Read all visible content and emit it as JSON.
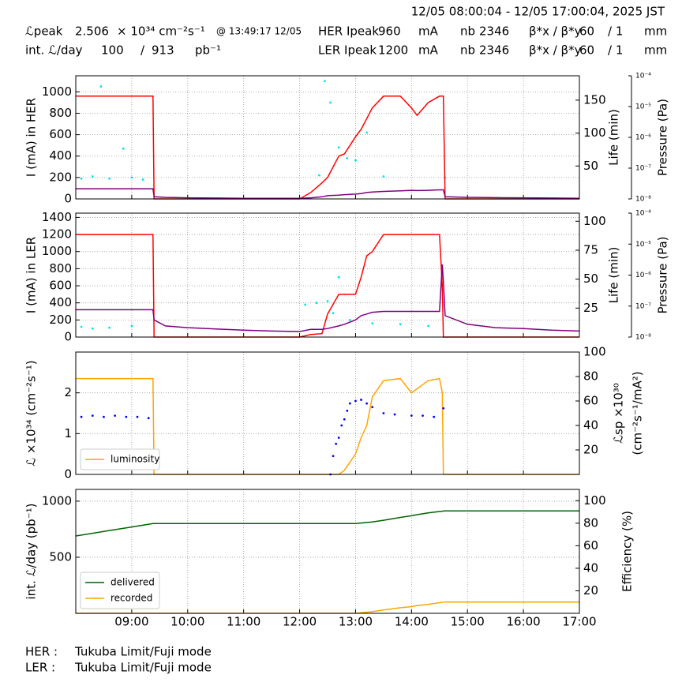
{
  "header": {
    "time_range": "12/05 08:00:04 - 12/05 17:00:04, 2025 JST",
    "rows": [
      [
        "ℒpeak",
        2.506,
        "× 10³⁴ cm⁻²s⁻¹",
        "@ 13:49:17 12/05",
        "HER Ipeak",
        960,
        "mA",
        "nb",
        2346,
        "β*x / β*y",
        60,
        "/ 1",
        "mm"
      ],
      [
        "int. ℒ/day",
        100,
        "/",
        913,
        "pb⁻¹",
        "LER Ipeak",
        1200,
        "mA",
        "nb",
        2346,
        "β*x / β*y",
        60,
        "/ 1",
        "mm"
      ]
    ]
  },
  "chart_data": [
    {
      "type": "line",
      "ylabel": "I (mA) in HER",
      "y2label": [
        "Life (min)"
      ],
      "y3label": "Pressure (Pa)",
      "ylim": [
        0,
        1150
      ],
      "yticks": [
        0,
        200,
        400,
        600,
        800,
        1000
      ],
      "y2lim": [
        0,
        187
      ],
      "y2ticks": [
        50,
        100,
        150
      ],
      "y3scale": "log",
      "y3lim": [
        1e-08,
        0.0001
      ],
      "y3ticks": [
        {
          "value": 1e-08,
          "label": "10⁻⁸"
        },
        {
          "value": 1e-07,
          "label": "10⁻⁷"
        },
        {
          "value": 1e-06,
          "label": "10⁻⁶"
        },
        {
          "value": 1e-05,
          "label": "10⁻⁵"
        },
        {
          "value": 0.0001,
          "label": "10⁻⁴"
        }
      ],
      "grid": true,
      "x": [
        8.0,
        8.5,
        9.0,
        9.38,
        9.4,
        9.6,
        10.0,
        10.5,
        11.0,
        11.5,
        12.0,
        12.2,
        12.4,
        12.5,
        12.7,
        12.8,
        13.0,
        13.1,
        13.2,
        13.3,
        13.5,
        13.8,
        14.0,
        14.1,
        14.3,
        14.5,
        14.55,
        14.57,
        14.6,
        15.0,
        15.5,
        16.0,
        16.5,
        17.0
      ],
      "series": [
        {
          "color": "#00e5ee",
          "mode": "markers",
          "x": [
            8.1,
            8.3,
            8.45,
            8.6,
            8.85,
            9.0,
            9.2,
            12.35,
            12.45,
            12.55,
            12.7,
            12.85,
            13.0,
            13.2,
            13.5,
            14.6
          ],
          "values": [
            190,
            210,
            1050,
            190,
            470,
            200,
            180,
            220,
            1100,
            900,
            480,
            380,
            360,
            620,
            210,
            200
          ]
        },
        {
          "color": "#ff0000",
          "values": [
            960,
            960,
            960,
            960,
            0,
            0,
            0,
            0,
            0,
            0,
            0,
            60,
            150,
            200,
            400,
            420,
            580,
            650,
            750,
            850,
            960,
            960,
            850,
            780,
            900,
            960,
            960,
            960,
            0,
            0,
            0,
            0,
            0,
            0
          ]
        },
        {
          "color": "#800080",
          "values": [
            95,
            95,
            95,
            95,
            20,
            15,
            10,
            8,
            6,
            5,
            5,
            10,
            20,
            30,
            35,
            40,
            45,
            50,
            60,
            65,
            70,
            75,
            80,
            78,
            80,
            85,
            85,
            85,
            20,
            15,
            12,
            10,
            8,
            5
          ]
        }
      ]
    },
    {
      "type": "line",
      "ylabel": "I (mA) in LER",
      "y2label": [
        "Life (min)"
      ],
      "y3label": "Pressure (Pa)",
      "ylim": [
        0,
        1450
      ],
      "yticks": [
        0,
        200,
        400,
        600,
        800,
        1000,
        1200,
        1400
      ],
      "y2lim": [
        0,
        107
      ],
      "y2ticks": [
        25,
        50,
        75,
        100
      ],
      "y3scale": "log",
      "y3lim": [
        1e-08,
        0.0001
      ],
      "y3ticks": [
        {
          "value": 1e-08,
          "label": "10⁻⁸"
        },
        {
          "value": 1e-07,
          "label": "10⁻⁷"
        },
        {
          "value": 1e-06,
          "label": "10⁻⁶"
        },
        {
          "value": 1e-05,
          "label": "10⁻⁵"
        },
        {
          "value": 0.0001,
          "label": "10⁻⁴"
        }
      ],
      "grid": true,
      "x": [
        8.0,
        8.5,
        9.0,
        9.38,
        9.4,
        9.6,
        10.0,
        10.5,
        11.0,
        11.5,
        12.0,
        12.2,
        12.4,
        12.5,
        12.7,
        12.8,
        13.0,
        13.1,
        13.2,
        13.3,
        13.5,
        13.8,
        14.0,
        14.1,
        14.3,
        14.5,
        14.55,
        14.57,
        14.6,
        15.0,
        15.5,
        16.0,
        16.5,
        17.0
      ],
      "series": [
        {
          "color": "#00e5ee",
          "mode": "markers",
          "x": [
            8.1,
            8.3,
            8.6,
            9.0,
            12.1,
            12.3,
            12.5,
            12.6,
            12.7,
            12.9,
            13.3,
            13.8,
            14.3
          ],
          "values": [
            120,
            100,
            110,
            130,
            380,
            400,
            420,
            280,
            700,
            200,
            160,
            150,
            130
          ]
        },
        {
          "color": "#ff0000",
          "values": [
            1200,
            1200,
            1200,
            1200,
            0,
            0,
            0,
            0,
            0,
            0,
            0,
            30,
            40,
            270,
            500,
            500,
            500,
            700,
            950,
            1000,
            1200,
            1200,
            1200,
            1200,
            1200,
            1200,
            600,
            0,
            0,
            0,
            0,
            0,
            0,
            0
          ]
        },
        {
          "color": "#800080",
          "values": [
            320,
            320,
            320,
            320,
            200,
            130,
            110,
            95,
            80,
            70,
            65,
            90,
            90,
            100,
            130,
            150,
            200,
            250,
            270,
            290,
            300,
            300,
            300,
            300,
            300,
            300,
            850,
            650,
            250,
            150,
            110,
            100,
            80,
            70
          ]
        }
      ]
    },
    {
      "type": "line",
      "ylabel": "ℒ ×10³⁴ (cm⁻²s⁻¹)",
      "y2label": [
        "ℒsp ×10³⁰",
        "(cm⁻²s⁻¹/mA²)"
      ],
      "ylim": [
        0,
        3
      ],
      "yticks": [
        0,
        1,
        2
      ],
      "y2lim": [
        0,
        100
      ],
      "y2ticks": [
        20,
        40,
        60,
        80,
        100
      ],
      "grid": true,
      "legend": "lower left",
      "x": [
        8.0,
        8.5,
        9.0,
        9.38,
        9.4,
        9.6,
        10.0,
        10.5,
        11.0,
        11.5,
        12.0,
        12.2,
        12.4,
        12.5,
        12.7,
        12.8,
        13.0,
        13.1,
        13.2,
        13.3,
        13.5,
        13.8,
        14.0,
        14.1,
        14.3,
        14.5,
        14.55,
        14.57,
        14.6,
        15.0,
        15.5,
        16.0,
        16.5,
        17.0
      ],
      "series": [
        {
          "name": "luminosity",
          "color": "#ffa500",
          "values": [
            2.35,
            2.35,
            2.35,
            2.35,
            0,
            0,
            0,
            0,
            0,
            0,
            0,
            0,
            0,
            0,
            0,
            0.1,
            0.5,
            0.9,
            1.2,
            1.9,
            2.3,
            2.35,
            2.0,
            2.1,
            2.3,
            2.35,
            2.0,
            0,
            0,
            0,
            0,
            0,
            0,
            0
          ]
        },
        {
          "color": "#0000ff",
          "mode": "markers",
          "axis": "y2",
          "x": [
            8.1,
            8.3,
            8.5,
            8.7,
            8.9,
            9.1,
            9.3,
            12.55,
            12.6,
            12.65,
            12.7,
            12.75,
            12.8,
            12.85,
            12.9,
            13.0,
            13.1,
            13.2,
            13.3,
            13.5,
            13.7,
            14.0,
            14.2,
            14.4,
            14.57
          ],
          "values": [
            47,
            48,
            47,
            48,
            47,
            47,
            46,
            0,
            15,
            25,
            30,
            40,
            45,
            52,
            58,
            60,
            61,
            58,
            55,
            50,
            49,
            48,
            48,
            47,
            54
          ]
        }
      ]
    },
    {
      "type": "line",
      "ylabel": "int. ℒ/day (pb⁻¹)",
      "y2label": [
        "Efficiency (%)"
      ],
      "ylim": [
        0,
        1105
      ],
      "yticks": [
        500,
        1000
      ],
      "y2lim": [
        0,
        110
      ],
      "y2ticks": [
        20,
        40,
        60,
        80,
        100
      ],
      "grid": true,
      "legend": "lower left",
      "xlim": [
        8,
        17
      ],
      "xticks": [
        {
          "value": 9,
          "label": "09:00"
        },
        {
          "value": 10,
          "label": "10:00"
        },
        {
          "value": 11,
          "label": "11:00"
        },
        {
          "value": 12,
          "label": "12:00"
        },
        {
          "value": 13,
          "label": "13:00"
        },
        {
          "value": 14,
          "label": "14:00"
        },
        {
          "value": 15,
          "label": "15:00"
        },
        {
          "value": 16,
          "label": "16:00"
        },
        {
          "value": 17,
          "label": "17:00"
        }
      ],
      "x": [
        8.0,
        8.5,
        9.0,
        9.38,
        9.4,
        9.6,
        10.0,
        10.5,
        11.0,
        11.5,
        12.0,
        12.2,
        12.4,
        12.5,
        12.7,
        12.8,
        13.0,
        13.1,
        13.2,
        13.3,
        13.5,
        13.8,
        14.0,
        14.1,
        14.3,
        14.5,
        14.55,
        14.57,
        14.6,
        15.0,
        15.5,
        16.0,
        16.5,
        17.0
      ],
      "series": [
        {
          "name": "delivered",
          "color": "#006400",
          "values": [
            690,
            730,
            770,
            800,
            800,
            800,
            800,
            800,
            800,
            800,
            800,
            800,
            800,
            800,
            800,
            800,
            800,
            805,
            810,
            815,
            830,
            855,
            870,
            880,
            895,
            908,
            910,
            913,
            913,
            913,
            913,
            913,
            913,
            913
          ]
        },
        {
          "name": "recorded",
          "color": "#ffa500",
          "values": [
            0,
            0,
            0,
            0,
            0,
            0,
            0,
            0,
            0,
            0,
            0,
            0,
            0,
            0,
            0,
            0,
            0,
            5,
            10,
            15,
            30,
            50,
            60,
            70,
            80,
            95,
            98,
            100,
            100,
            100,
            100,
            100,
            100,
            100
          ]
        }
      ]
    }
  ],
  "footer": {
    "rows": [
      [
        "HER :",
        "Tukuba Limit/Fuji mode"
      ],
      [
        "LER :",
        "Tukuba Limit/Fuji mode"
      ]
    ]
  }
}
